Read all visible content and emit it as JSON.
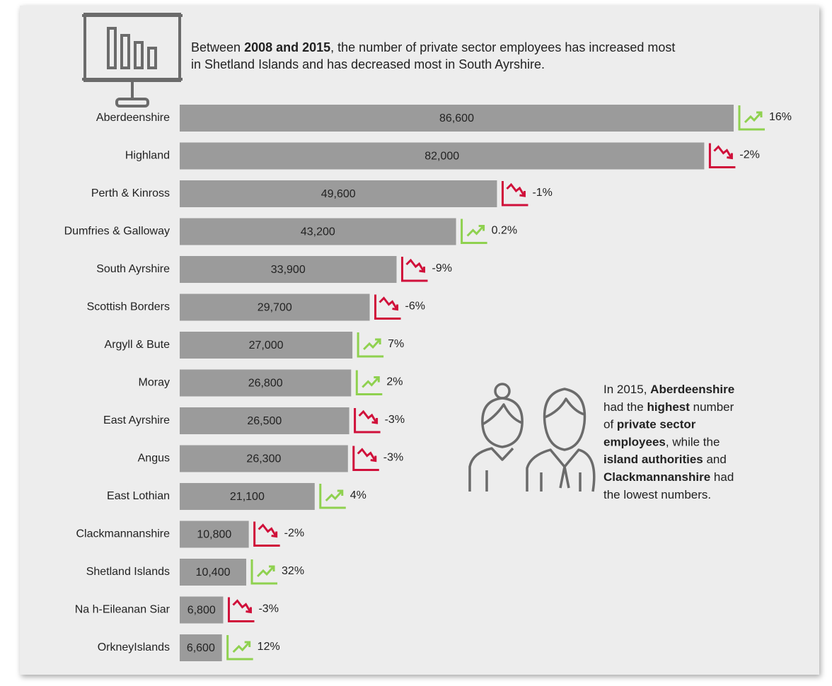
{
  "chart_data": {
    "type": "bar",
    "orientation": "horizontal",
    "title_lines": [
      [
        {
          "text": "Between ",
          "bold": false
        },
        {
          "text": "2008 and 2015",
          "bold": true
        },
        {
          "text": ", the number of private sector employees has increased most",
          "bold": false
        }
      ],
      [
        {
          "text": "in Shetland Islands and has decreased most in South Ayrshire.",
          "bold": false
        }
      ]
    ],
    "categories": [
      "Aberdeenshire",
      "Highland",
      "Perth & Kinross",
      "Dumfries & Galloway",
      "South Ayrshire",
      "Scottish Borders",
      "Argyll & Bute",
      "Moray",
      "East Ayrshire",
      "Angus",
      "East Lothian",
      "Clackmannanshire",
      "Shetland Islands",
      "Na h-Eileanan Siar",
      "OrkneyIslands"
    ],
    "values": [
      86600,
      82000,
      49600,
      43200,
      33900,
      29700,
      27000,
      26800,
      26500,
      26300,
      21100,
      10800,
      10400,
      6800,
      6600
    ],
    "value_labels": [
      "86,600",
      "82,000",
      "49,600",
      "43,200",
      "33,900",
      "29,700",
      "27,000",
      "26,800",
      "26,500",
      "26,300",
      "21,100",
      "10,800",
      "10,400",
      "6,800",
      "6,600"
    ],
    "color": "#9b9b9b",
    "changes": [
      16,
      -2,
      -1,
      0.2,
      -9,
      -6,
      7,
      2,
      -3,
      -3,
      4,
      -2,
      32,
      -3,
      12
    ],
    "change_labels": [
      "16%",
      "-2%",
      "-1%",
      "0.2%",
      "-9%",
      "-6%",
      "7%",
      "2%",
      "-3%",
      "-3%",
      "4%",
      "-2%",
      "32%",
      "-3%",
      "12%"
    ],
    "up_color": "#8fd14f",
    "down_color": "#d0103a",
    "annotation_lines": [
      [
        {
          "text": "In 2015, ",
          "bold": false
        },
        {
          "text": "Aberdeenshire",
          "bold": true
        }
      ],
      [
        {
          "text": "had the ",
          "bold": false
        },
        {
          "text": "highest",
          "bold": true
        },
        {
          "text": " number",
          "bold": false
        }
      ],
      [
        {
          "text": "of ",
          "bold": false
        },
        {
          "text": "private sector",
          "bold": true
        }
      ],
      [
        {
          "text": "employees",
          "bold": true
        },
        {
          "text": ", while the",
          "bold": false
        }
      ],
      [
        {
          "text": "island authorities",
          "bold": true
        },
        {
          "text": " and",
          "bold": false
        }
      ],
      [
        {
          "text": "Clackmannanshire",
          "bold": true
        },
        {
          "text": " had",
          "bold": false
        }
      ],
      [
        {
          "text": "the lowest numbers.",
          "bold": false
        }
      ]
    ]
  }
}
